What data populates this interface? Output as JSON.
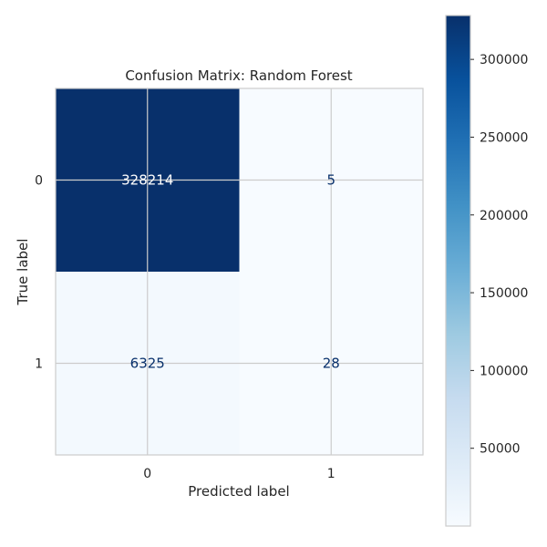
{
  "chart_data": {
    "type": "heatmap",
    "title": "Confusion Matrix: Random Forest",
    "xlabel": "Predicted label",
    "ylabel": "True label",
    "x_categories": [
      "0",
      "1"
    ],
    "y_categories": [
      "0",
      "1"
    ],
    "values": [
      [
        328214,
        5
      ],
      [
        6325,
        28
      ]
    ],
    "colormap": "Blues",
    "vmin": 5,
    "vmax": 328214,
    "colorbar": {
      "ticks": [
        50000,
        100000,
        150000,
        200000,
        250000,
        300000
      ],
      "tick_labels": [
        "50000",
        "100000",
        "150000",
        "200000",
        "250000",
        "300000"
      ]
    },
    "grid": true
  }
}
